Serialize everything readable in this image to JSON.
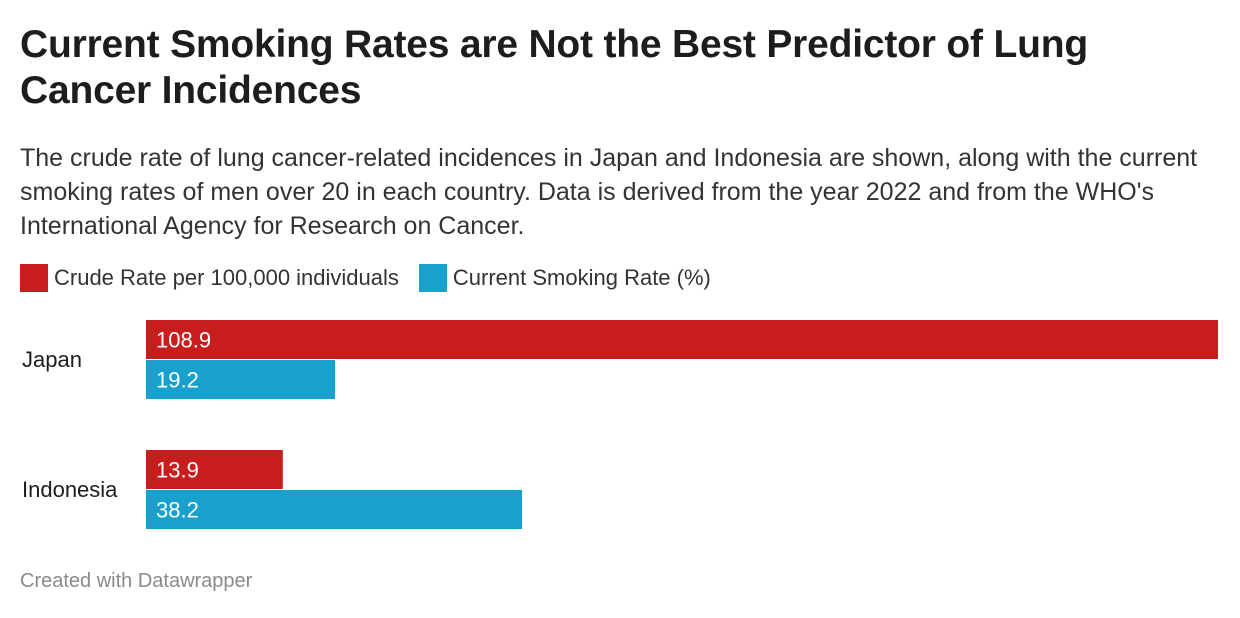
{
  "header": {
    "title": "Current Smoking Rates are Not the Best Predictor of Lung Cancer Incidences",
    "subtitle": "The crude rate of lung cancer-related incidences in Japan and Indonesia are shown, along with the current smoking rates of men over 20 in each country. Data is derived from the year 2022 and from the WHO's International Agency for Research on Cancer."
  },
  "footer": {
    "credit": "Created with Datawrapper"
  },
  "chart_data": {
    "type": "bar",
    "orientation": "horizontal",
    "categories": [
      "Japan",
      "Indonesia"
    ],
    "series": [
      {
        "name": "Crude Rate per 100,000 individuals",
        "values": [
          108.9,
          13.9
        ],
        "color": "#c71e1d"
      },
      {
        "name": "Current Smoking Rate (%)",
        "values": [
          19.2,
          38.2
        ],
        "color": "#18a1cd"
      }
    ],
    "xlim": [
      0,
      108.9
    ],
    "grid": false,
    "legend": "top-left",
    "value_labels": "inside-start"
  }
}
